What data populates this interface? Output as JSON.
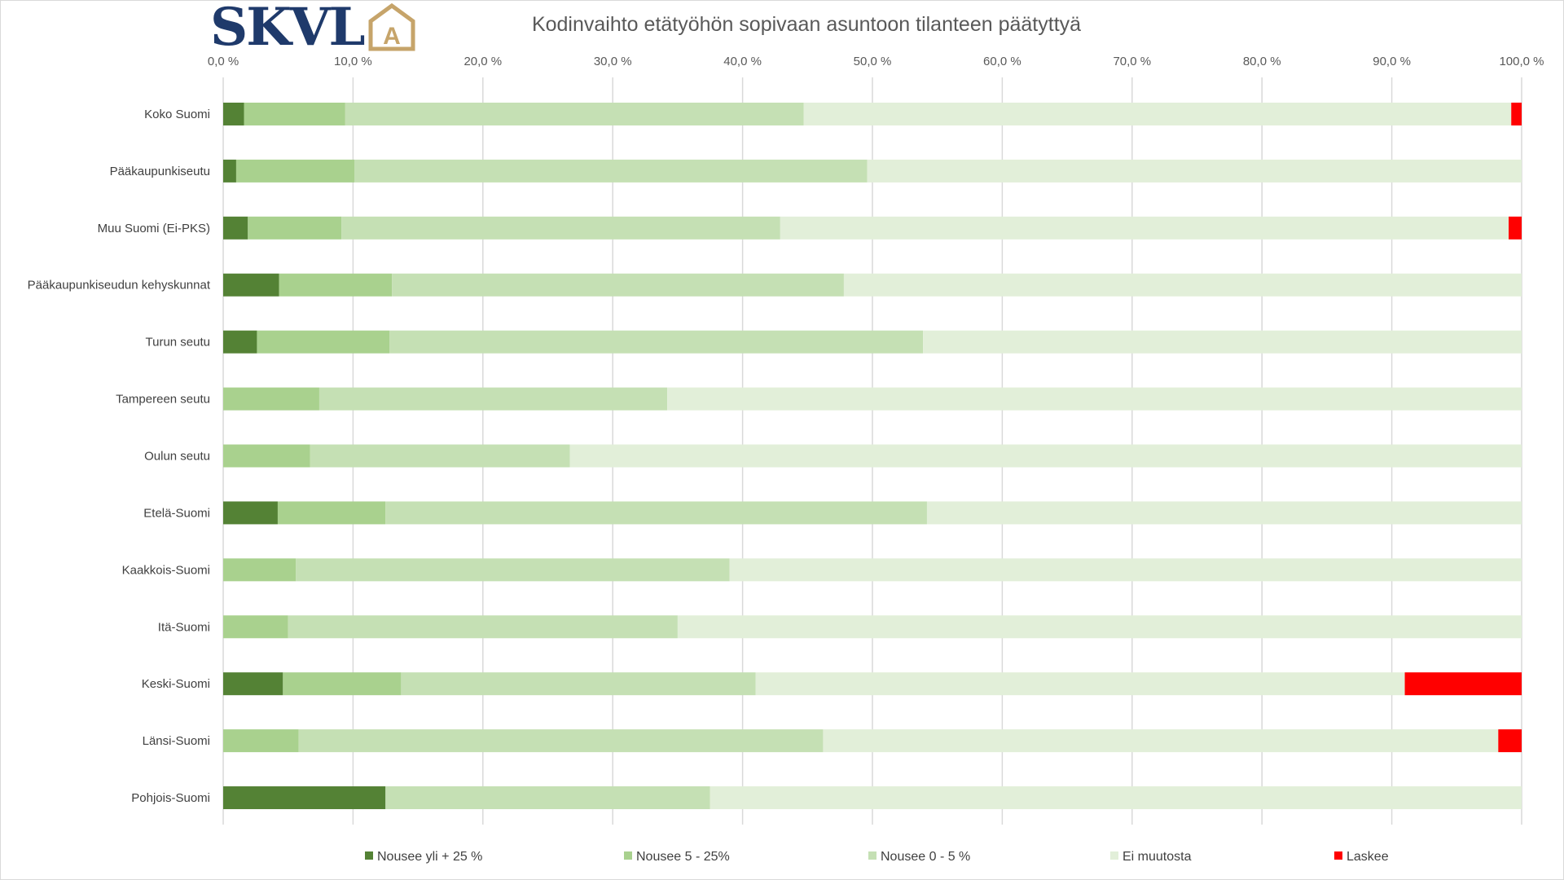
{
  "logo": {
    "text": "SKVL",
    "mark": "A"
  },
  "colors": {
    "Nousee yli + 25 %": "#548235",
    "Nousee 5 - 25%": "#a9d18e",
    "Nousee 0 - 5 %": "#c5e0b4",
    "Ei muutosta": "#e2efd9",
    "Laskee": "#ff0000",
    "gridline": "#d9d9d9",
    "text": "#595959"
  },
  "chart_data": {
    "type": "bar",
    "orientation": "horizontal",
    "stacked": true,
    "title": "Kodinvaihto etätyöhön sopivaan asuntoon tilanteen päätyttyä",
    "xlim": [
      0,
      100
    ],
    "x_ticks": [
      "0,0 %",
      "10,0 %",
      "20,0 %",
      "30,0 %",
      "40,0 %",
      "50,0 %",
      "60,0 %",
      "70,0 %",
      "80,0 %",
      "90,0 %",
      "100,0 %"
    ],
    "x_axis_position": "top",
    "grid": true,
    "legend_position": "bottom",
    "categories": [
      "Koko Suomi",
      "Pääkaupunkiseutu",
      "Muu Suomi (Ei-PKS)",
      "Pääkaupunkiseudun kehyskunnat",
      "Turun seutu",
      "Tampereen seutu",
      "Oulun seutu",
      "Etelä-Suomi",
      "Kaakkois-Suomi",
      "Itä-Suomi",
      "Keski-Suomi",
      "Länsi-Suomi",
      "Pohjois-Suomi"
    ],
    "series": [
      {
        "name": "Nousee yli + 25 %",
        "values": [
          1.6,
          1.0,
          1.9,
          4.3,
          2.6,
          0.0,
          0.0,
          4.2,
          0.0,
          0.0,
          4.6,
          0.0,
          12.5
        ]
      },
      {
        "name": "Nousee 5 - 25%",
        "values": [
          7.8,
          9.1,
          7.2,
          8.7,
          10.2,
          7.4,
          6.7,
          8.3,
          5.6,
          5.0,
          9.1,
          5.8,
          0.0
        ]
      },
      {
        "name": "Nousee 0 - 5 %",
        "values": [
          35.3,
          39.5,
          33.8,
          34.8,
          41.1,
          26.8,
          20.0,
          41.7,
          33.4,
          30.0,
          27.3,
          40.4,
          25.0
        ]
      },
      {
        "name": "Ei muutosta",
        "values": [
          54.5,
          50.4,
          56.1,
          52.2,
          46.1,
          65.8,
          73.3,
          45.8,
          61.0,
          65.0,
          50.0,
          52.0,
          62.5
        ]
      },
      {
        "name": "Laskee",
        "values": [
          0.8,
          0.0,
          1.0,
          0.0,
          0.0,
          0.0,
          0.0,
          0.0,
          0.0,
          0.0,
          9.0,
          1.8,
          0.0
        ]
      }
    ]
  }
}
